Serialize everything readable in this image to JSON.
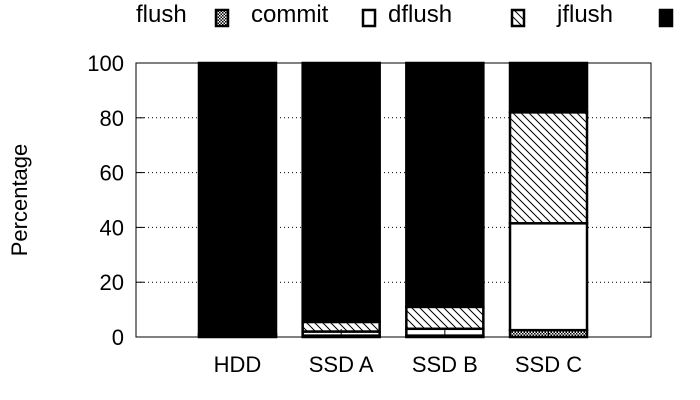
{
  "chart_data": {
    "type": "bar",
    "stacked": true,
    "title": "",
    "xlabel": "",
    "ylabel": "Percentage",
    "ylim": [
      0,
      100
    ],
    "yticks": [
      0,
      20,
      40,
      60,
      80,
      100
    ],
    "grid": "horizontal dotted",
    "legend_position": "top",
    "categories": [
      "HDD",
      "SSD A",
      "SSD B",
      "SSD C"
    ],
    "series": [
      {
        "name": "flush",
        "pattern": "dense-crosshatch",
        "values": [
          0.5,
          0.5,
          0.5,
          2.5
        ]
      },
      {
        "name": "commit",
        "pattern": "white",
        "values": [
          0.5,
          1.5,
          2.5,
          39
        ]
      },
      {
        "name": "dflush",
        "pattern": "diagonal-hatch",
        "values": [
          0,
          3.5,
          8,
          40.5
        ]
      },
      {
        "name": "jflush",
        "pattern": "solid-black",
        "values": [
          99,
          94.5,
          89,
          18
        ]
      }
    ]
  }
}
